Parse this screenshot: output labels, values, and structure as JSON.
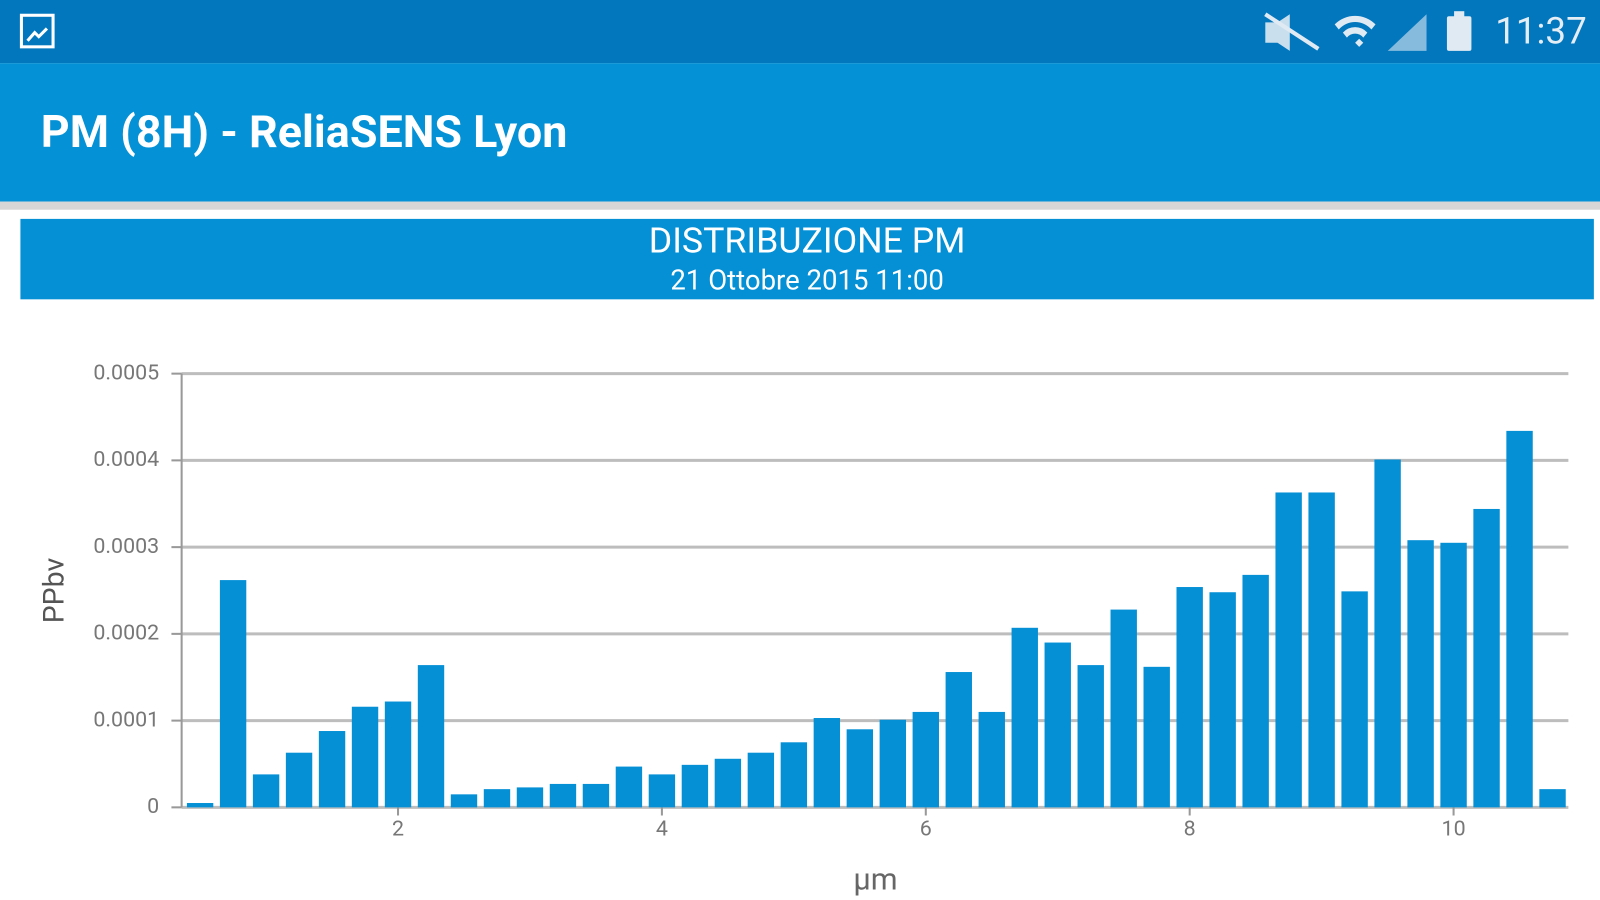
{
  "status_bar": {
    "time": "11:37"
  },
  "app_bar": {
    "title": "PM (8H) - ReliaSENS Lyon"
  },
  "chart_data": {
    "type": "bar",
    "title": "DISTRIBUZIONE PM",
    "subtitle": "21 Ottobre 2015 11:00",
    "y_label": "PPbv",
    "x_label": "µm",
    "x": [
      0.5,
      0.75,
      1,
      1.25,
      1.5,
      1.75,
      2,
      2.25,
      2.5,
      2.75,
      3,
      3.25,
      3.5,
      3.75,
      4,
      4.25,
      4.5,
      4.75,
      5,
      5.25,
      5.5,
      5.75,
      6,
      6.25,
      6.5,
      6.75,
      7,
      7.25,
      7.5,
      7.75,
      8,
      8.25,
      8.5,
      8.75,
      9,
      9.25,
      9.5,
      9.75,
      10,
      10.25,
      10.5,
      10.75
    ],
    "values": [
      5e-06,
      0.000262,
      3.8e-05,
      6.3e-05,
      8.8e-05,
      0.000116,
      0.000122,
      0.000164,
      1.5e-05,
      2.1e-05,
      2.3e-05,
      2.7e-05,
      2.7e-05,
      4.7e-05,
      3.8e-05,
      4.9e-05,
      5.6e-05,
      6.3e-05,
      7.5e-05,
      0.000103,
      9e-05,
      0.000101,
      0.00011,
      0.000156,
      0.00011,
      0.000207,
      0.00019,
      0.000164,
      0.000228,
      0.000162,
      0.000254,
      0.000248,
      0.000268,
      0.000363,
      0.000363,
      0.000249,
      0.000401,
      0.000308,
      0.000305,
      0.000344,
      0.000434,
      2.1e-05
    ],
    "color": "#0590d6",
    "xlim": [
      0.36,
      10.87
    ],
    "xticks": [
      2,
      4,
      6,
      8,
      10
    ],
    "ylim": [
      0,
      0.0005
    ],
    "yticks": [
      0,
      0.0001,
      0.0002,
      0.0003,
      0.0004,
      0.0005
    ],
    "grid": true
  }
}
